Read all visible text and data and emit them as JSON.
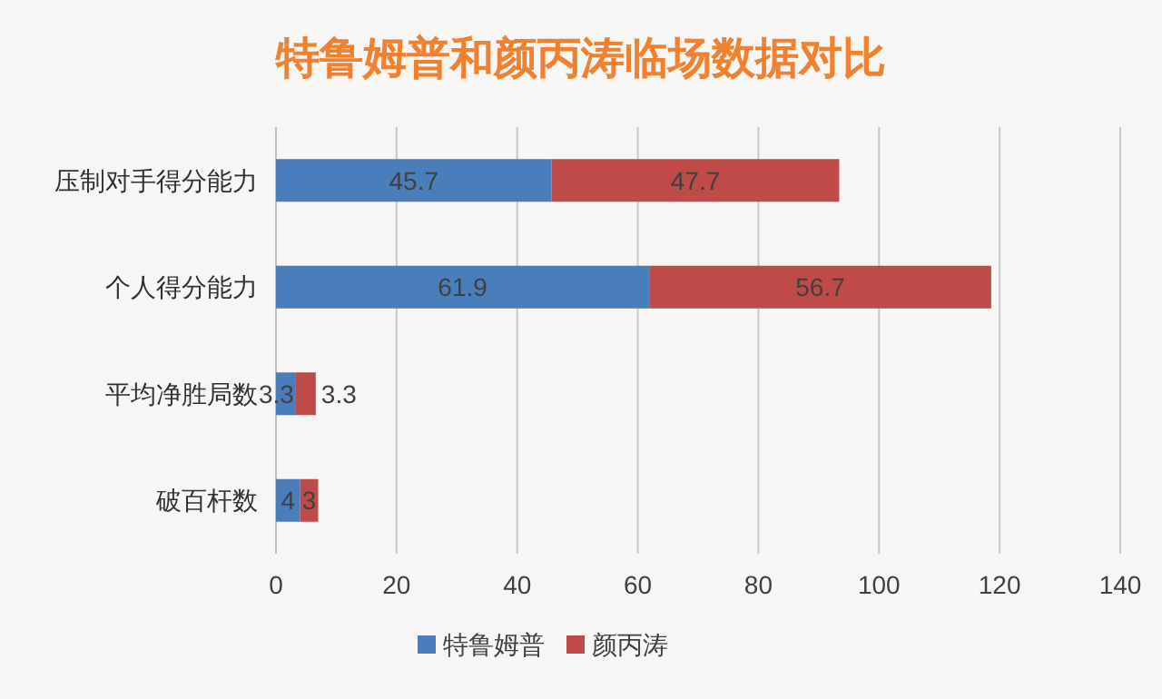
{
  "chart_data": {
    "type": "bar",
    "orientation": "horizontal",
    "stacked": true,
    "title": "特鲁姆普和颜丙涛临场数据对比",
    "categories": [
      "压制对手得分能力",
      "个人得分能力",
      "平均净胜局数",
      "破百杆数"
    ],
    "series": [
      {
        "name": "特鲁姆普",
        "color": "#4a7ebb",
        "values": [
          45.7,
          61.9,
          3.3,
          4
        ]
      },
      {
        "name": "颜丙涛",
        "color": "#be4b48",
        "values": [
          47.7,
          56.7,
          3.3,
          3
        ]
      }
    ],
    "xlim": [
      0,
      140
    ],
    "xticks": [
      0,
      20,
      40,
      60,
      80,
      100,
      120,
      140
    ],
    "grid": "x",
    "legend": "bottom",
    "data_labels": true
  }
}
